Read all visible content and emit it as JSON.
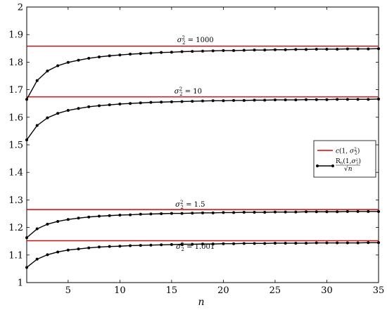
{
  "chart_data": {
    "type": "line",
    "xlabel": "n",
    "ylabel": "",
    "xlim": [
      1,
      35
    ],
    "ylim": [
      1,
      2
    ],
    "x_ticks": [
      5,
      10,
      15,
      20,
      25,
      30,
      35
    ],
    "y_ticks": [
      1,
      1.1,
      1.2,
      1.3,
      1.4,
      1.5,
      1.6,
      1.7,
      1.8,
      1.9,
      2
    ],
    "x_tick_labels": [
      "5",
      "10",
      "15",
      "20",
      "25",
      "30",
      "35"
    ],
    "y_tick_labels": [
      "1",
      "1.1",
      "1.2",
      "1.3",
      "1.4",
      "1.5",
      "1.6",
      "1.7",
      "1.8",
      "1.9",
      "2"
    ],
    "grid": false,
    "legend": {
      "position": "right",
      "entries": [
        {
          "label_text": "c(1, σ₂²)",
          "color": "#e00000",
          "marker": "none"
        },
        {
          "label_text": "R_n(1, σ₂²) / √n",
          "color": "#000000",
          "marker": "circle"
        }
      ]
    },
    "annotations": [
      {
        "text": "σ₂² = 1000",
        "x": 17.3,
        "y": 1.872
      },
      {
        "text": "σ₂² = 10",
        "x": 16.6,
        "y": 1.686
      },
      {
        "text": "σ₂² = 1.5",
        "x": 16.8,
        "y": 1.276
      },
      {
        "text": "σ₂² = 1.001",
        "x": 17.3,
        "y": 1.122
      }
    ],
    "limits": [
      {
        "name": "c(1, σ₂²)",
        "annotation": "σ₂² = 1000",
        "y": 1.858
      },
      {
        "name": "c(1, σ₂²)",
        "annotation": "σ₂² = 10",
        "y": 1.674
      },
      {
        "name": "c(1, σ₂²)",
        "annotation": "σ₂² = 1.5",
        "y": 1.265
      },
      {
        "name": "c(1, σ₂²)",
        "annotation": "σ₂² = 1.001",
        "y": 1.152
      }
    ],
    "x": [
      1,
      2,
      3,
      4,
      5,
      6,
      7,
      8,
      9,
      10,
      11,
      12,
      13,
      14,
      15,
      16,
      17,
      18,
      19,
      20,
      21,
      22,
      23,
      24,
      25,
      26,
      27,
      28,
      29,
      30,
      31,
      32,
      33,
      34,
      35
    ],
    "series": [
      {
        "annotation": "σ₂² = 1000",
        "color": "#000000",
        "values": [
          1.665,
          1.733,
          1.768,
          1.787,
          1.799,
          1.807,
          1.814,
          1.819,
          1.823,
          1.826,
          1.829,
          1.831,
          1.833,
          1.835,
          1.836,
          1.838,
          1.839,
          1.84,
          1.841,
          1.842,
          1.842,
          1.843,
          1.844,
          1.844,
          1.845,
          1.845,
          1.846,
          1.846,
          1.847,
          1.847,
          1.847,
          1.848,
          1.848,
          1.848,
          1.849
        ]
      },
      {
        "annotation": "σ₂² = 10",
        "color": "#000000",
        "values": [
          1.518,
          1.57,
          1.598,
          1.614,
          1.625,
          1.632,
          1.638,
          1.642,
          1.645,
          1.648,
          1.65,
          1.652,
          1.654,
          1.655,
          1.656,
          1.657,
          1.658,
          1.659,
          1.66,
          1.66,
          1.661,
          1.661,
          1.662,
          1.662,
          1.663,
          1.663,
          1.663,
          1.664,
          1.664,
          1.664,
          1.665,
          1.665,
          1.665,
          1.665,
          1.666
        ]
      },
      {
        "annotation": "σ₂² = 1.5",
        "color": "#000000",
        "values": [
          1.163,
          1.195,
          1.212,
          1.222,
          1.229,
          1.234,
          1.238,
          1.241,
          1.243,
          1.245,
          1.246,
          1.248,
          1.249,
          1.25,
          1.251,
          1.251,
          1.252,
          1.253,
          1.253,
          1.254,
          1.254,
          1.255,
          1.255,
          1.255,
          1.256,
          1.256,
          1.256,
          1.257,
          1.257,
          1.257,
          1.257,
          1.258,
          1.258,
          1.258,
          1.258
        ]
      },
      {
        "annotation": "σ₂² = 1.001",
        "color": "#000000",
        "values": [
          1.055,
          1.085,
          1.101,
          1.111,
          1.118,
          1.122,
          1.126,
          1.129,
          1.131,
          1.132,
          1.134,
          1.135,
          1.136,
          1.137,
          1.138,
          1.139,
          1.139,
          1.14,
          1.14,
          1.141,
          1.141,
          1.142,
          1.142,
          1.142,
          1.143,
          1.143,
          1.143,
          1.143,
          1.144,
          1.144,
          1.144,
          1.144,
          1.144,
          1.145,
          1.145
        ]
      }
    ]
  }
}
